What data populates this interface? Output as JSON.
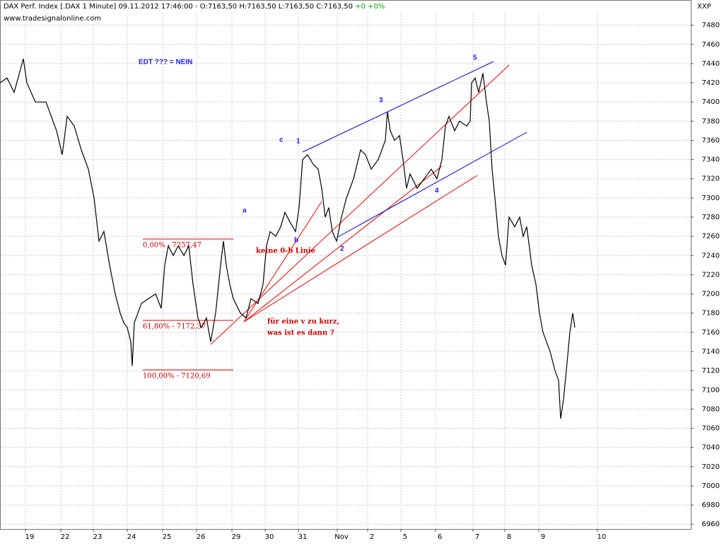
{
  "chart_data": {
    "type": "line",
    "header": "DAX Perf. Index [.DAX  1 Minute] 09.11.2012 17:46:00 - O:7163,50 H:7163,50 L:7163,50 C:7163,50",
    "change": "+0 +0%",
    "source": "www.tradesignalonline.com",
    "axis_code": "XXP",
    "annotations": [
      "EDT ??? = NEIN",
      "5",
      "3",
      "1",
      "c",
      "4",
      "a",
      "b",
      "2",
      "keine 0-b Linie",
      "für eine v zu kurz,",
      "was ist es dann ?",
      "0,00% - 7257,47",
      "61,80% - 7172,37",
      "100,00% - 7120,69"
    ],
    "color": "#000000",
    "x": [
      0,
      10,
      20,
      33,
      38,
      50,
      65,
      80,
      88,
      95,
      105,
      115,
      125,
      133,
      140,
      147,
      155,
      163,
      170,
      175,
      180,
      185,
      187,
      190,
      195,
      200,
      210,
      220,
      228,
      233,
      238,
      245,
      252,
      260,
      267,
      273,
      280,
      285,
      292,
      298,
      305,
      312,
      316,
      320,
      325,
      330,
      340,
      348,
      355,
      365,
      372,
      377,
      382,
      390,
      397,
      403,
      410,
      418,
      423,
      428,
      435,
      443,
      450,
      455,
      460,
      465,
      470,
      476,
      483,
      490,
      500,
      510,
      517,
      525,
      535,
      545,
      548,
      552,
      558,
      565,
      570,
      575,
      580,
      590,
      600,
      610,
      618,
      625,
      630,
      635,
      643,
      650,
      660,
      665,
      667,
      672,
      677,
      683,
      688,
      692,
      696,
      700,
      705,
      710,
      715,
      720,
      728,
      735,
      740,
      745,
      752,
      758,
      763,
      768,
      773,
      778,
      785,
      790,
      793,
      797,
      801,
      806,
      810,
      813
    ],
    "values": [
      7420,
      7425,
      7410,
      7445,
      7420,
      7400,
      7400,
      7370,
      7345,
      7385,
      7375,
      7350,
      7330,
      7300,
      7255,
      7265,
      7230,
      7200,
      7180,
      7170,
      7165,
      7150,
      7125,
      7170,
      7180,
      7190,
      7195,
      7200,
      7185,
      7230,
      7250,
      7240,
      7250,
      7240,
      7250,
      7210,
      7175,
      7165,
      7175,
      7150,
      7180,
      7230,
      7255,
      7230,
      7210,
      7195,
      7180,
      7175,
      7195,
      7190,
      7210,
      7250,
      7265,
      7260,
      7270,
      7285,
      7275,
      7265,
      7290,
      7340,
      7345,
      7335,
      7330,
      7310,
      7280,
      7290,
      7265,
      7255,
      7280,
      7300,
      7320,
      7350,
      7345,
      7330,
      7340,
      7360,
      7390,
      7370,
      7360,
      7365,
      7340,
      7310,
      7325,
      7310,
      7320,
      7330,
      7320,
      7340,
      7375,
      7385,
      7370,
      7380,
      7375,
      7380,
      7420,
      7425,
      7410,
      7430,
      7400,
      7380,
      7330,
      7300,
      7260,
      7240,
      7230,
      7280,
      7270,
      7280,
      7260,
      7270,
      7230,
      7210,
      7180,
      7160,
      7150,
      7140,
      7120,
      7110,
      7070,
      7090,
      7120,
      7160,
      7180,
      7165
    ],
    "xlim": [
      0,
      977
    ],
    "xticks": [
      {
        "value": 42,
        "label": "19"
      },
      {
        "value": 92,
        "label": "22"
      },
      {
        "value": 138,
        "label": "23"
      },
      {
        "value": 186,
        "label": "24"
      },
      {
        "value": 236,
        "label": "25"
      },
      {
        "value": 284,
        "label": "26"
      },
      {
        "value": 334,
        "label": "29"
      },
      {
        "value": 381,
        "label": "30"
      },
      {
        "value": 428,
        "label": "31"
      },
      {
        "value": 483,
        "label": "Nov"
      },
      {
        "value": 526,
        "label": "2"
      },
      {
        "value": 573,
        "label": "5"
      },
      {
        "value": 622,
        "label": "6"
      },
      {
        "value": 675,
        "label": "7"
      },
      {
        "value": 720,
        "label": "8"
      },
      {
        "value": 768,
        "label": "9"
      },
      {
        "value": 851,
        "label": "10"
      }
    ],
    "ylim": [
      6955,
      7493
    ],
    "yticks": [
      6960,
      6980,
      7000,
      7020,
      7040,
      7060,
      7080,
      7100,
      7120,
      7140,
      7160,
      7180,
      7200,
      7220,
      7240,
      7260,
      7280,
      7300,
      7320,
      7340,
      7360,
      7380,
      7400,
      7420,
      7440,
      7460,
      7480
    ],
    "grid": true
  }
}
